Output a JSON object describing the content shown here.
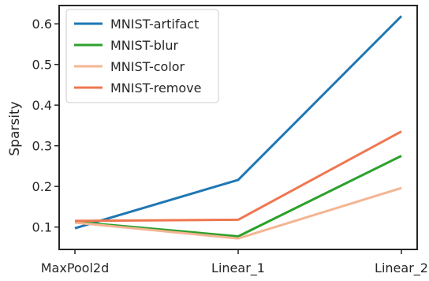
{
  "chart_data": {
    "type": "line",
    "x": [
      "MaxPool2d",
      "Linear_1",
      "Linear_2"
    ],
    "ylabel": "Sparsity",
    "xlabel": "",
    "ylim": [
      0.045,
      0.645
    ],
    "yticks": [
      0.1,
      0.2,
      0.3,
      0.4,
      0.5,
      0.6
    ],
    "ytick_labels": [
      "0.1",
      "0.2",
      "0.3",
      "0.4",
      "0.5",
      "0.6"
    ],
    "grid": false,
    "legend_position": "top-left",
    "series": [
      {
        "name": "MNIST-artifact",
        "color": "#1f77b4",
        "values": [
          0.097,
          0.216,
          0.619
        ]
      },
      {
        "name": "MNIST-blur",
        "color": "#2ca02c",
        "values": [
          0.113,
          0.077,
          0.275
        ]
      },
      {
        "name": "MNIST-color",
        "color": "#f4b593",
        "values": [
          0.111,
          0.072,
          0.196
        ]
      },
      {
        "name": "MNIST-remove",
        "color": "#ef7750",
        "values": [
          0.115,
          0.118,
          0.335
        ]
      }
    ]
  }
}
